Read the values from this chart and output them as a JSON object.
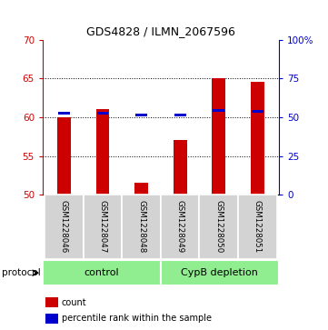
{
  "title": "GDS4828 / ILMN_2067596",
  "samples": [
    "GSM1228046",
    "GSM1228047",
    "GSM1228048",
    "GSM1228049",
    "GSM1228050",
    "GSM1228051"
  ],
  "count_values": [
    60.0,
    61.0,
    51.5,
    57.0,
    65.0,
    64.5
  ],
  "percentile_values": [
    52.3,
    52.7,
    51.2,
    51.5,
    54.2,
    54.0
  ],
  "ylim_left": [
    50,
    70
  ],
  "ylim_right": [
    0,
    100
  ],
  "yticks_left": [
    50,
    55,
    60,
    65,
    70
  ],
  "yticks_right": [
    0,
    25,
    50,
    75,
    100
  ],
  "ytick_labels_right": [
    "0",
    "25",
    "50",
    "75",
    "100%"
  ],
  "bar_color": "#CC0000",
  "percentile_color": "#0000CC",
  "bar_width": 0.35,
  "left_axis_color": "#CC0000",
  "right_axis_color": "#0000CC",
  "legend_count_label": "count",
  "legend_percentile_label": "percentile rank within the sample",
  "protocol_label": "protocol",
  "panel_bg_color": "#D3D3D3",
  "group_bg_color": "#90EE90",
  "dotted_lines": [
    55,
    60,
    65
  ]
}
